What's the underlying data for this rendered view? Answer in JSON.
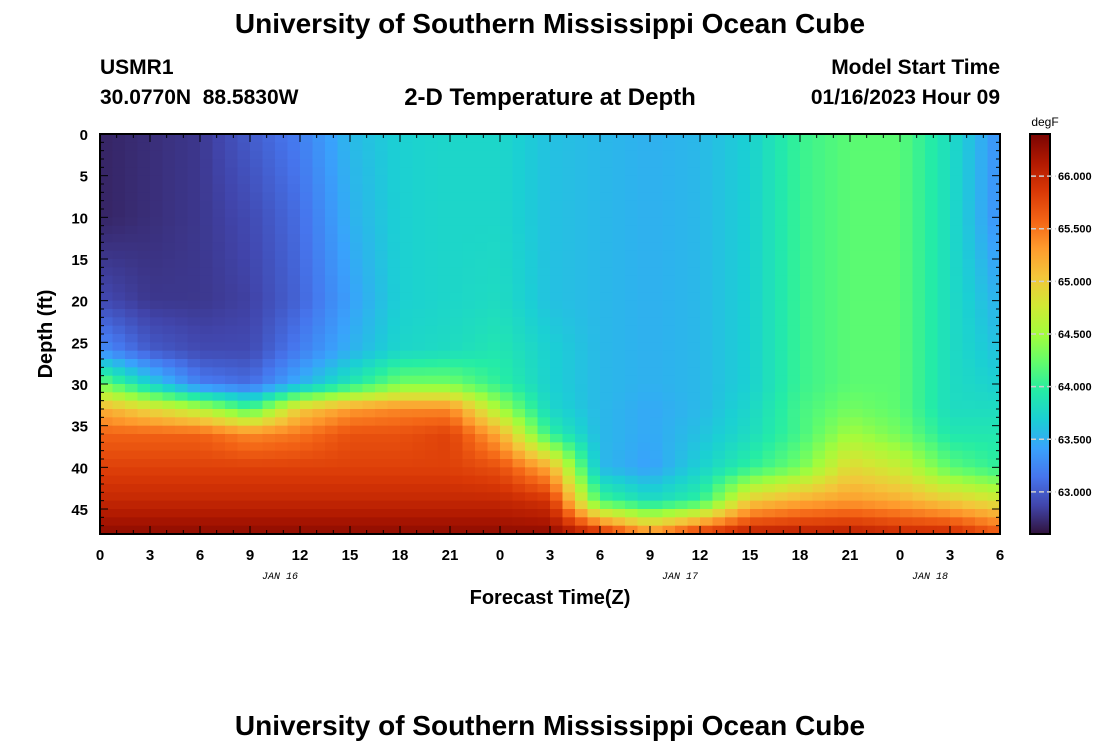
{
  "header": {
    "title": "University of Southern Mississippi Ocean Cube",
    "station_id": "USMR1",
    "station_coords": "30.0770N  88.5830W",
    "plot_title": "2-D Temperature at Depth",
    "model_start_label": "Model Start Time",
    "model_start_value": "01/16/2023 Hour 09"
  },
  "footer": {
    "title": "University of Southern Mississippi Ocean Cube"
  },
  "chart_data": {
    "type": "heatmap",
    "title": "2-D Temperature at Depth",
    "xlabel": "Forecast Time(Z)",
    "ylabel": "Depth (ft)",
    "x_ticks": [
      "0",
      "3",
      "6",
      "9",
      "12",
      "15",
      "18",
      "21",
      "0",
      "3",
      "6",
      "9",
      "12",
      "15",
      "18",
      "21",
      "0",
      "3",
      "6"
    ],
    "date_labels": [
      {
        "label": "JAN 16",
        "at_tick": 4
      },
      {
        "label": "JAN 17",
        "at_tick": 12
      },
      {
        "label": "JAN 18",
        "at_tick": 17
      }
    ],
    "y_ticks": [
      0,
      5,
      10,
      15,
      20,
      25,
      30,
      35,
      40,
      45
    ],
    "ylim": [
      0,
      48
    ],
    "y_inverted": true,
    "xlim_hours": [
      0,
      54
    ],
    "colorbar": {
      "unit": "degF",
      "min": 62.6,
      "max": 66.4,
      "ticks": [
        "63.000",
        "63.500",
        "64.000",
        "64.500",
        "65.000",
        "65.500",
        "66.000"
      ],
      "colors": [
        "#30123b",
        "#4145ab",
        "#4675ed",
        "#39a2fc",
        "#1bcfd4",
        "#24eca6",
        "#61fc6c",
        "#a4fc3b",
        "#d1e834",
        "#f3c63a",
        "#fe9b2d",
        "#f36315",
        "#d93806",
        "#b11901",
        "#7a0402"
      ]
    },
    "profile_hours": [
      0,
      3,
      6,
      9,
      12,
      15,
      18,
      21,
      24,
      27,
      30,
      33,
      36,
      39,
      42,
      45,
      48,
      51,
      54
    ],
    "profile_depths_ft": [
      0,
      10,
      20,
      26,
      30,
      33,
      36,
      40,
      44,
      48
    ],
    "temperature_degF": [
      [
        62.7,
        62.7,
        62.9,
        63.3,
        64.3,
        65.2,
        65.6,
        65.8,
        66.0,
        66.3
      ],
      [
        62.75,
        62.75,
        62.8,
        63.0,
        63.7,
        64.9,
        65.6,
        65.8,
        66.0,
        66.3
      ],
      [
        62.8,
        62.8,
        62.8,
        62.9,
        63.2,
        64.6,
        65.6,
        65.8,
        66.0,
        66.3
      ],
      [
        63.0,
        62.9,
        62.85,
        62.9,
        63.1,
        64.1,
        65.4,
        65.8,
        66.0,
        66.3
      ],
      [
        63.2,
        63.1,
        63.05,
        63.2,
        63.5,
        65.0,
        65.5,
        65.8,
        66.0,
        66.3
      ],
      [
        63.55,
        63.5,
        63.4,
        63.5,
        63.9,
        65.3,
        65.7,
        65.8,
        66.0,
        66.3
      ],
      [
        63.7,
        63.7,
        63.7,
        63.75,
        64.3,
        65.4,
        65.7,
        65.8,
        66.0,
        66.3
      ],
      [
        63.75,
        63.75,
        63.75,
        63.8,
        64.3,
        65.4,
        65.8,
        65.8,
        66.0,
        66.3
      ],
      [
        63.75,
        63.75,
        63.8,
        63.9,
        64.0,
        64.5,
        65.2,
        65.7,
        66.0,
        66.3
      ],
      [
        63.6,
        63.6,
        63.6,
        63.7,
        63.7,
        63.75,
        64.0,
        65.2,
        65.9,
        66.3
      ],
      [
        63.55,
        63.55,
        63.55,
        63.55,
        63.55,
        63.55,
        63.55,
        63.55,
        64.1,
        66.0
      ],
      [
        63.5,
        63.5,
        63.5,
        63.5,
        63.5,
        63.45,
        63.45,
        63.4,
        63.8,
        65.4
      ],
      [
        63.55,
        63.55,
        63.55,
        63.55,
        63.55,
        63.55,
        63.6,
        63.7,
        64.0,
        65.9
      ],
      [
        63.7,
        63.7,
        63.7,
        63.7,
        63.7,
        63.75,
        63.8,
        64.0,
        65.0,
        66.1
      ],
      [
        64.05,
        64.05,
        64.05,
        64.05,
        64.05,
        64.1,
        64.1,
        64.3,
        65.2,
        66.1
      ],
      [
        64.2,
        64.2,
        64.2,
        64.2,
        64.2,
        64.3,
        64.5,
        64.9,
        65.3,
        66.1
      ],
      [
        64.2,
        64.2,
        64.2,
        64.2,
        64.2,
        64.2,
        64.3,
        64.7,
        65.2,
        66.0
      ],
      [
        63.8,
        63.8,
        63.8,
        63.8,
        63.8,
        63.8,
        63.9,
        64.2,
        65.0,
        66.0
      ],
      [
        63.3,
        63.3,
        63.5,
        63.6,
        63.7,
        63.8,
        63.9,
        64.0,
        64.8,
        65.7
      ]
    ]
  }
}
